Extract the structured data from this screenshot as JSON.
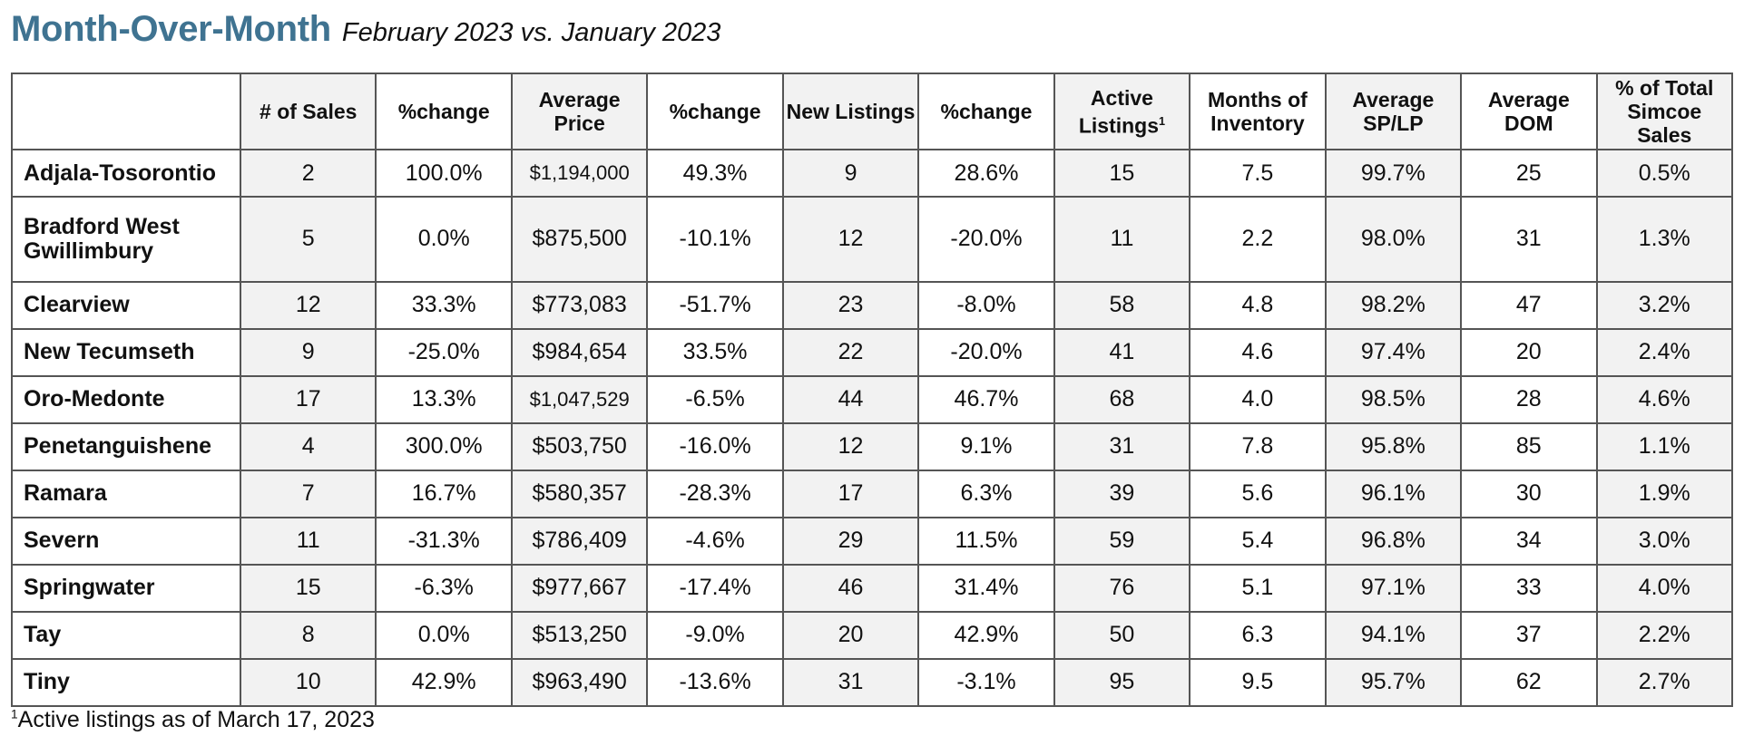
{
  "header": {
    "title": "Month-Over-Month",
    "subtitle": "February 2023 vs. January 2023"
  },
  "table": {
    "columns": [
      {
        "label": "",
        "sup": ""
      },
      {
        "label": "# of Sales",
        "sup": ""
      },
      {
        "label": "%change",
        "sup": ""
      },
      {
        "label": "Average Price",
        "sup": ""
      },
      {
        "label": "%change",
        "sup": ""
      },
      {
        "label": "New Listings",
        "sup": ""
      },
      {
        "label": "%change",
        "sup": ""
      },
      {
        "label": "Active Listings",
        "sup": "1"
      },
      {
        "label": "Months of Inventory",
        "sup": ""
      },
      {
        "label": "Average SP/LP",
        "sup": ""
      },
      {
        "label": "Average DOM",
        "sup": ""
      },
      {
        "label": "% of Total Simcoe Sales",
        "sup": ""
      }
    ],
    "rows": [
      {
        "area": "Adjala-Tosorontio",
        "sales": "2",
        "sales_change": "100.0%",
        "avg_price": "$1,194,000",
        "price_change": "49.3%",
        "new_listings": "9",
        "listings_change": "28.6%",
        "active_listings": "15",
        "months_inventory": "7.5",
        "sp_lp": "99.7%",
        "dom": "25",
        "pct_total": "0.5%"
      },
      {
        "area": "Bradford West Gwillimbury",
        "sales": "5",
        "sales_change": "0.0%",
        "avg_price": "$875,500",
        "price_change": "-10.1%",
        "new_listings": "12",
        "listings_change": "-20.0%",
        "active_listings": "11",
        "months_inventory": "2.2",
        "sp_lp": "98.0%",
        "dom": "31",
        "pct_total": "1.3%"
      },
      {
        "area": "Clearview",
        "sales": "12",
        "sales_change": "33.3%",
        "avg_price": "$773,083",
        "price_change": "-51.7%",
        "new_listings": "23",
        "listings_change": "-8.0%",
        "active_listings": "58",
        "months_inventory": "4.8",
        "sp_lp": "98.2%",
        "dom": "47",
        "pct_total": "3.2%"
      },
      {
        "area": "New Tecumseth",
        "sales": "9",
        "sales_change": "-25.0%",
        "avg_price": "$984,654",
        "price_change": "33.5%",
        "new_listings": "22",
        "listings_change": "-20.0%",
        "active_listings": "41",
        "months_inventory": "4.6",
        "sp_lp": "97.4%",
        "dom": "20",
        "pct_total": "2.4%"
      },
      {
        "area": "Oro-Medonte",
        "sales": "17",
        "sales_change": "13.3%",
        "avg_price": "$1,047,529",
        "price_change": "-6.5%",
        "new_listings": "44",
        "listings_change": "46.7%",
        "active_listings": "68",
        "months_inventory": "4.0",
        "sp_lp": "98.5%",
        "dom": "28",
        "pct_total": "4.6%"
      },
      {
        "area": "Penetanguishene",
        "sales": "4",
        "sales_change": "300.0%",
        "avg_price": "$503,750",
        "price_change": "-16.0%",
        "new_listings": "12",
        "listings_change": "9.1%",
        "active_listings": "31",
        "months_inventory": "7.8",
        "sp_lp": "95.8%",
        "dom": "85",
        "pct_total": "1.1%"
      },
      {
        "area": "Ramara",
        "sales": "7",
        "sales_change": "16.7%",
        "avg_price": "$580,357",
        "price_change": "-28.3%",
        "new_listings": "17",
        "listings_change": "6.3%",
        "active_listings": "39",
        "months_inventory": "5.6",
        "sp_lp": "96.1%",
        "dom": "30",
        "pct_total": "1.9%"
      },
      {
        "area": "Severn",
        "sales": "11",
        "sales_change": "-31.3%",
        "avg_price": "$786,409",
        "price_change": "-4.6%",
        "new_listings": "29",
        "listings_change": "11.5%",
        "active_listings": "59",
        "months_inventory": "5.4",
        "sp_lp": "96.8%",
        "dom": "34",
        "pct_total": "3.0%"
      },
      {
        "area": "Springwater",
        "sales": "15",
        "sales_change": "-6.3%",
        "avg_price": "$977,667",
        "price_change": "-17.4%",
        "new_listings": "46",
        "listings_change": "31.4%",
        "active_listings": "76",
        "months_inventory": "5.1",
        "sp_lp": "97.1%",
        "dom": "33",
        "pct_total": "4.0%"
      },
      {
        "area": "Tay",
        "sales": "8",
        "sales_change": "0.0%",
        "avg_price": "$513,250",
        "price_change": "-9.0%",
        "new_listings": "20",
        "listings_change": "42.9%",
        "active_listings": "50",
        "months_inventory": "6.3",
        "sp_lp": "94.1%",
        "dom": "37",
        "pct_total": "2.2%"
      },
      {
        "area": "Tiny",
        "sales": "10",
        "sales_change": "42.9%",
        "avg_price": "$963,490",
        "price_change": "-13.6%",
        "new_listings": "31",
        "listings_change": "-3.1%",
        "active_listings": "95",
        "months_inventory": "9.5",
        "sp_lp": "95.7%",
        "dom": "62",
        "pct_total": "2.7%"
      }
    ]
  },
  "footnote": {
    "marker": "1",
    "text": "Active listings as of March 17, 2023"
  }
}
